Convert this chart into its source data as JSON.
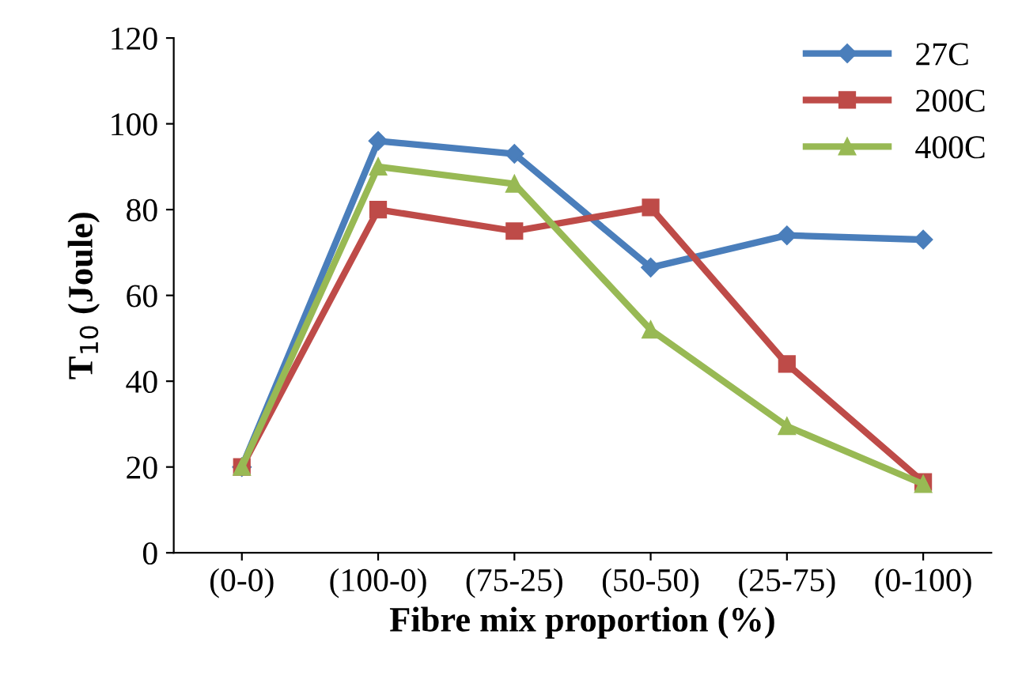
{
  "chart_data": {
    "type": "line",
    "xlabel": "Fibre mix proportion (%)",
    "ylabel": "T$_{10}$ (Joule)",
    "categories": [
      "(0-0)",
      "(100-0)",
      "(75-25)",
      "(50-50)",
      "(25-75)",
      "(0-100)"
    ],
    "series": [
      {
        "name": "27C",
        "color": "#4a7ebb",
        "marker": "diamond",
        "values": [
          20,
          96,
          93,
          66.5,
          74,
          73
        ]
      },
      {
        "name": "200C",
        "color": "#be4b48",
        "marker": "square",
        "values": [
          20,
          80,
          75,
          80.5,
          44,
          16.5
        ]
      },
      {
        "name": "400C",
        "color": "#98b954",
        "marker": "triangle",
        "values": [
          20,
          90,
          86,
          52,
          29.5,
          16
        ]
      }
    ],
    "ylim": [
      0,
      120
    ],
    "yticks": [
      0,
      20,
      40,
      60,
      80,
      100,
      120
    ],
    "grid": false,
    "legend": "top right",
    "line_style": "solid"
  }
}
